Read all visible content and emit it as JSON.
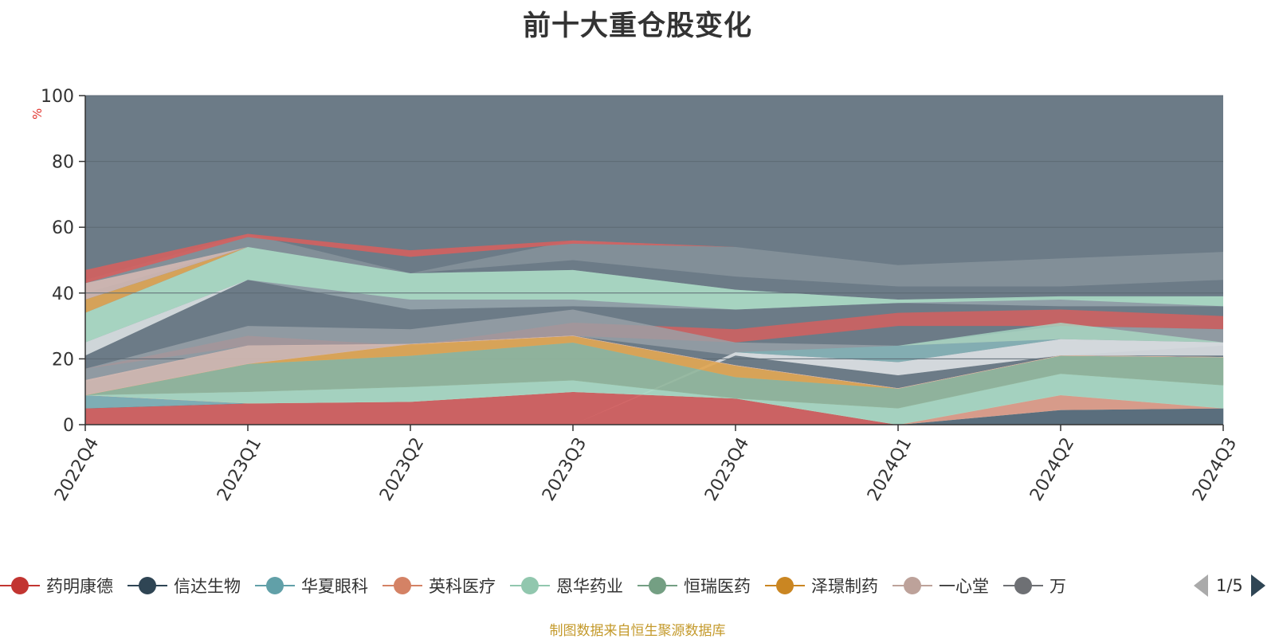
{
  "title": "前十大重仓股变化",
  "source": "制图数据来自恒生聚源数据库",
  "legend_pager": "1/5",
  "chart_data": {
    "type": "area",
    "stacked": true,
    "unit": "%",
    "ylim": [
      0,
      100
    ],
    "yticks": [
      0,
      20,
      40,
      60,
      80,
      100
    ],
    "categories": [
      "2022Q4",
      "2023Q1",
      "2023Q2",
      "2023Q3",
      "2023Q4",
      "2024Q1",
      "2024Q2",
      "2024Q3"
    ],
    "grid": true,
    "series": [
      {
        "name": "药明康德",
        "color": "#d4605f",
        "values": [
          5,
          6.5,
          7,
          10,
          8,
          0,
          0,
          0
        ]
      },
      {
        "name": "信达生物",
        "color": "#596c7c",
        "values": [
          0,
          0,
          0,
          0,
          0,
          0,
          4.5,
          5
        ]
      },
      {
        "name": "华夏眼科",
        "color": "#80b1b7",
        "values": [
          4,
          0,
          0,
          0,
          0,
          0,
          0,
          0
        ]
      },
      {
        "name": "英科医疗",
        "color": "#e19d8a",
        "values": [
          0,
          0,
          0,
          0,
          0,
          0,
          4.5,
          0
        ]
      },
      {
        "name": "恩华药业",
        "color": "#a9d8c3",
        "values": [
          0,
          3.5,
          4.5,
          3.5,
          0,
          5,
          6.5,
          7
        ]
      },
      {
        "name": "恒瑞医药",
        "color": "#93b69d",
        "values": [
          0,
          8.5,
          9.5,
          11.5,
          6.5,
          6,
          5.5,
          8.5
        ]
      },
      {
        "name": "泽璟制药",
        "color": "#e1a654",
        "values": [
          0,
          0,
          3.5,
          2,
          3.5,
          0,
          0,
          0
        ]
      },
      {
        "name": "一心堂",
        "color": "#d3b8b2",
        "values": [
          4.5,
          5.5,
          0,
          0,
          0,
          0,
          0,
          0
        ]
      }
    ],
    "legend": [
      {
        "name": "药明康德",
        "color": "#c23531"
      },
      {
        "name": "信达生物",
        "color": "#2f4554"
      },
      {
        "name": "华夏眼科",
        "color": "#61a0a8"
      },
      {
        "name": "英科医疗",
        "color": "#d48265"
      },
      {
        "name": "恩华药业",
        "color": "#91c7ae"
      },
      {
        "name": "恒瑞医药",
        "color": "#749f83"
      },
      {
        "name": "泽璟制药",
        "color": "#ca8622"
      },
      {
        "name": "一心堂",
        "color": "#bda29a"
      },
      {
        "name": "万",
        "color": "#6e7074"
      }
    ]
  }
}
